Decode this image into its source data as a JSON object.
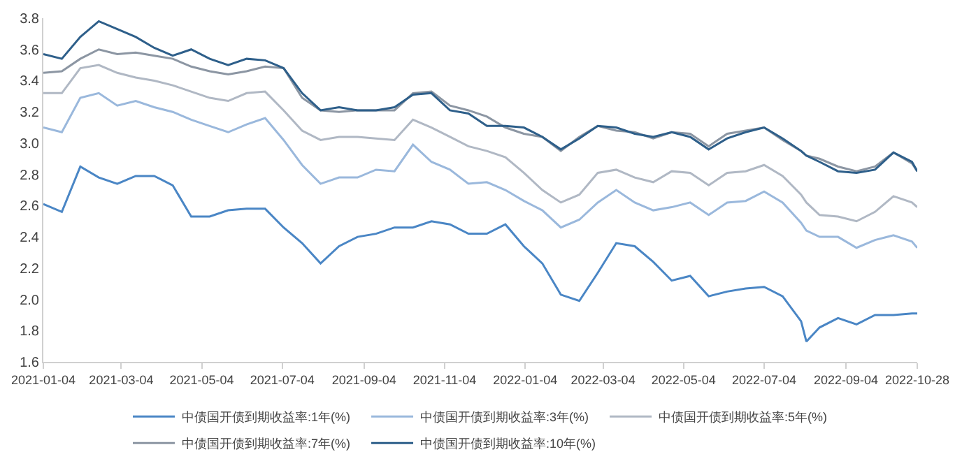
{
  "chart_data": {
    "type": "line",
    "x": [
      "2021-01-04",
      "2021-01-18",
      "2021-02-01",
      "2021-02-15",
      "2021-03-01",
      "2021-03-15",
      "2021-03-29",
      "2021-04-12",
      "2021-04-26",
      "2021-05-10",
      "2021-05-24",
      "2021-06-07",
      "2021-06-21",
      "2021-07-05",
      "2021-07-19",
      "2021-08-02",
      "2021-08-16",
      "2021-08-30",
      "2021-09-13",
      "2021-09-27",
      "2021-10-11",
      "2021-10-25",
      "2021-11-08",
      "2021-11-22",
      "2021-12-06",
      "2021-12-20",
      "2022-01-03",
      "2022-01-17",
      "2022-01-31",
      "2022-02-14",
      "2022-02-28",
      "2022-03-14",
      "2022-03-28",
      "2022-04-11",
      "2022-04-25",
      "2022-05-09",
      "2022-05-23",
      "2022-06-06",
      "2022-06-20",
      "2022-07-04",
      "2022-07-18",
      "2022-08-01",
      "2022-08-05",
      "2022-08-15",
      "2022-08-29",
      "2022-09-12",
      "2022-09-26",
      "2022-10-10",
      "2022-10-24",
      "2022-10-28"
    ],
    "series": [
      {
        "name": "中债国开债到期收益率:1年(%)",
        "color": "#4a86c5",
        "values": [
          2.61,
          2.56,
          2.85,
          2.78,
          2.74,
          2.79,
          2.79,
          2.73,
          2.53,
          2.53,
          2.57,
          2.58,
          2.58,
          2.46,
          2.36,
          2.23,
          2.34,
          2.4,
          2.42,
          2.46,
          2.46,
          2.5,
          2.48,
          2.42,
          2.42,
          2.48,
          2.34,
          2.23,
          2.03,
          1.99,
          2.17,
          2.36,
          2.34,
          2.24,
          2.12,
          2.15,
          2.02,
          2.05,
          2.07,
          2.08,
          2.02,
          1.86,
          1.73,
          1.82,
          1.88,
          1.84,
          1.9,
          1.9,
          1.91,
          1.91
        ]
      },
      {
        "name": "中债国开债到期收益率:3年(%)",
        "color": "#9ab8dc",
        "values": [
          3.1,
          3.07,
          3.29,
          3.32,
          3.24,
          3.27,
          3.23,
          3.2,
          3.15,
          3.11,
          3.07,
          3.12,
          3.16,
          3.02,
          2.86,
          2.74,
          2.78,
          2.78,
          2.83,
          2.82,
          2.99,
          2.88,
          2.83,
          2.74,
          2.75,
          2.7,
          2.63,
          2.57,
          2.46,
          2.51,
          2.62,
          2.7,
          2.62,
          2.57,
          2.59,
          2.62,
          2.54,
          2.62,
          2.63,
          2.69,
          2.62,
          2.49,
          2.44,
          2.4,
          2.4,
          2.33,
          2.38,
          2.41,
          2.37,
          2.33
        ]
      },
      {
        "name": "中债国开债到期收益率:5年(%)",
        "color": "#b0b8c4",
        "values": [
          3.32,
          3.32,
          3.48,
          3.5,
          3.45,
          3.42,
          3.4,
          3.37,
          3.33,
          3.29,
          3.27,
          3.32,
          3.33,
          3.21,
          3.08,
          3.02,
          3.04,
          3.04,
          3.03,
          3.02,
          3.15,
          3.1,
          3.04,
          2.98,
          2.95,
          2.91,
          2.81,
          2.7,
          2.62,
          2.67,
          2.81,
          2.83,
          2.78,
          2.75,
          2.82,
          2.81,
          2.73,
          2.81,
          2.82,
          2.86,
          2.79,
          2.67,
          2.62,
          2.54,
          2.53,
          2.5,
          2.56,
          2.66,
          2.62,
          2.59
        ]
      },
      {
        "name": "中债国开债到期收益率:7年(%)",
        "color": "#8c96a3",
        "values": [
          3.45,
          3.46,
          3.54,
          3.6,
          3.57,
          3.58,
          3.56,
          3.54,
          3.49,
          3.46,
          3.44,
          3.46,
          3.49,
          3.48,
          3.29,
          3.21,
          3.2,
          3.21,
          3.21,
          3.21,
          3.32,
          3.33,
          3.24,
          3.21,
          3.17,
          3.1,
          3.06,
          3.04,
          2.95,
          3.04,
          3.11,
          3.08,
          3.07,
          3.03,
          3.07,
          3.06,
          2.98,
          3.06,
          3.08,
          3.1,
          3.02,
          2.95,
          2.92,
          2.9,
          2.85,
          2.82,
          2.85,
          2.94,
          2.87,
          2.82
        ]
      },
      {
        "name": "中债国开债到期收益率:10年(%)",
        "color": "#2e5f8a",
        "values": [
          3.57,
          3.54,
          3.68,
          3.78,
          3.73,
          3.68,
          3.61,
          3.56,
          3.6,
          3.54,
          3.5,
          3.54,
          3.53,
          3.48,
          3.32,
          3.21,
          3.23,
          3.21,
          3.21,
          3.23,
          3.31,
          3.32,
          3.21,
          3.19,
          3.11,
          3.11,
          3.1,
          3.04,
          2.96,
          3.03,
          3.11,
          3.1,
          3.06,
          3.04,
          3.07,
          3.04,
          2.96,
          3.03,
          3.07,
          3.1,
          3.03,
          2.95,
          2.92,
          2.88,
          2.82,
          2.81,
          2.83,
          2.94,
          2.88,
          2.82
        ]
      }
    ],
    "xlim": [
      "2021-01-04",
      "2022-10-28"
    ],
    "xticks": [
      "2021-01-04",
      "2021-03-04",
      "2021-05-04",
      "2021-07-04",
      "2021-09-04",
      "2021-11-04",
      "2022-01-04",
      "2022-03-04",
      "2022-05-04",
      "2022-07-04",
      "2022-09-04",
      "2022-10-28"
    ],
    "ylim": [
      1.6,
      3.8
    ],
    "yticks": [
      {
        "value": 1.6,
        "label": "1.6"
      },
      {
        "value": 1.8,
        "label": "1.8"
      },
      {
        "value": 2.0,
        "label": "2.0"
      },
      {
        "value": 2.2,
        "label": "2.2"
      },
      {
        "value": 2.4,
        "label": "2.4"
      },
      {
        "value": 2.6,
        "label": "2.6"
      },
      {
        "value": 2.8,
        "label": "2.8"
      },
      {
        "value": 3.0,
        "label": "3.0"
      },
      {
        "value": 3.2,
        "label": "3.2"
      },
      {
        "value": 3.4,
        "label": "3.4"
      },
      {
        "value": 3.6,
        "label": "3.6"
      },
      {
        "value": 3.8,
        "label": "3.8"
      }
    ],
    "legend": "bottom",
    "marker": "none",
    "line_style": "solid"
  }
}
